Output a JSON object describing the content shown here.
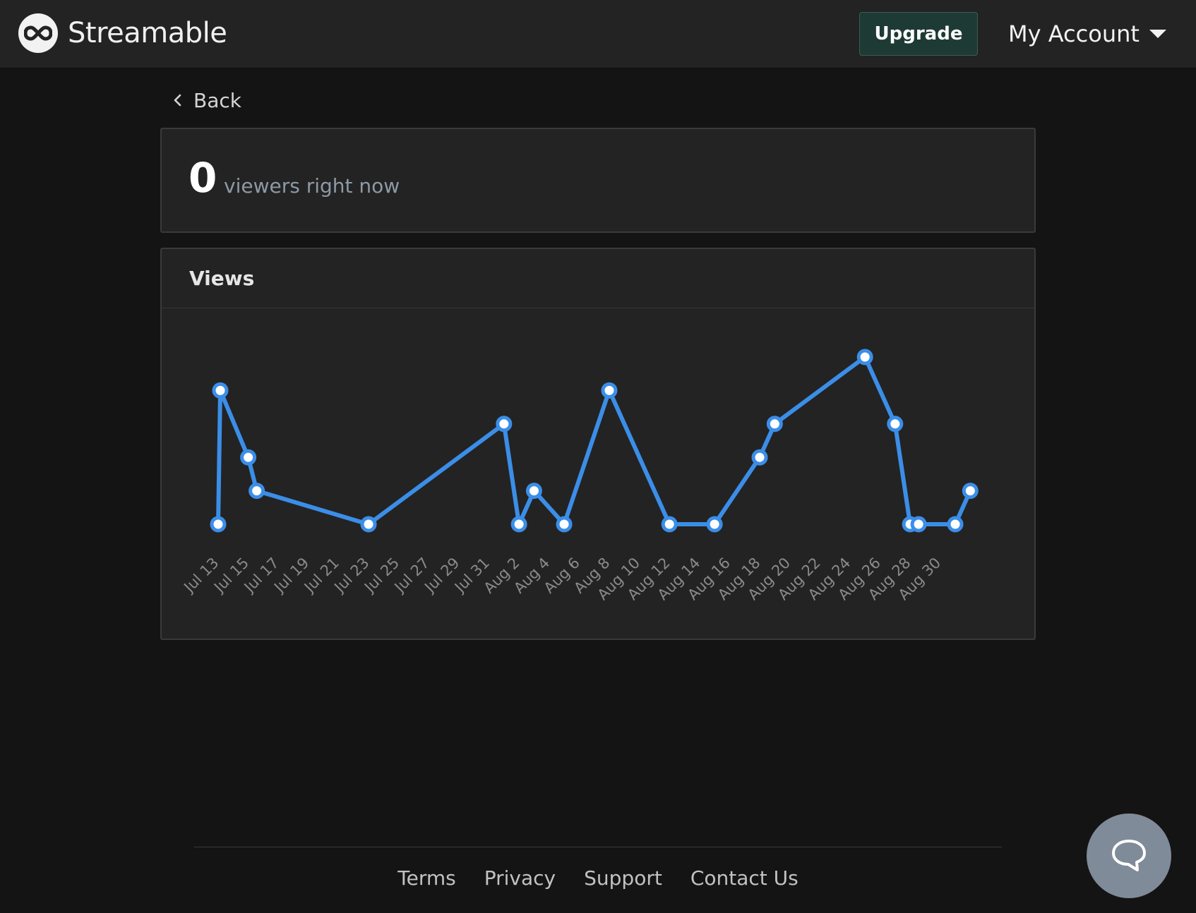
{
  "header": {
    "brand": "Streamable",
    "upgrade_label": "Upgrade",
    "account_label": "My Account",
    "icons": {
      "logo": "infinity-logo-icon",
      "account_caret": "caret-down-icon"
    }
  },
  "nav": {
    "back_label": "Back",
    "back_icon": "chevron-left-icon"
  },
  "live": {
    "viewers_count": "0",
    "viewers_label": "viewers right now"
  },
  "views_card": {
    "title": "Views"
  },
  "chart_data": {
    "type": "line",
    "title": "",
    "xlabel": "",
    "ylabel": "",
    "grid": false,
    "legend": "none",
    "color": "#3b8ee8",
    "x_domain": [
      "2023-07-13",
      "2023-08-31"
    ],
    "y_range": [
      0,
      5
    ],
    "x_ticks": [
      "Jul 13",
      "Jul 15",
      "Jul 17",
      "Jul 19",
      "Jul 21",
      "Jul 23",
      "Jul 25",
      "Jul 27",
      "Jul 29",
      "Jul 31",
      "Aug 2",
      "Aug 4",
      "Aug 6",
      "Aug 8",
      "Aug 10",
      "Aug 12",
      "Aug 14",
      "Aug 16",
      "Aug 18",
      "Aug 20",
      "Aug 22",
      "Aug 24",
      "Aug 26",
      "Aug 28",
      "Aug 30"
    ],
    "points": [
      {
        "x": "2023-07-13",
        "y": 0
      },
      {
        "x": "2023-07-13",
        "y": 4
      },
      {
        "x": "2023-07-15",
        "y": 2
      },
      {
        "x": "2023-07-15",
        "y": 1
      },
      {
        "x": "2023-07-23",
        "y": 0
      },
      {
        "x": "2023-08-01",
        "y": 3
      },
      {
        "x": "2023-08-02",
        "y": 0
      },
      {
        "x": "2023-08-03",
        "y": 1
      },
      {
        "x": "2023-08-05",
        "y": 0
      },
      {
        "x": "2023-08-08",
        "y": 4
      },
      {
        "x": "2023-08-12",
        "y": 0
      },
      {
        "x": "2023-08-15",
        "y": 0
      },
      {
        "x": "2023-08-18",
        "y": 2
      },
      {
        "x": "2023-08-19",
        "y": 3
      },
      {
        "x": "2023-08-25",
        "y": 5
      },
      {
        "x": "2023-08-27",
        "y": 3
      },
      {
        "x": "2023-08-28",
        "y": 0
      },
      {
        "x": "2023-08-28",
        "y": 0
      },
      {
        "x": "2023-08-31",
        "y": 0
      },
      {
        "x": "2023-09-01",
        "y": 1
      }
    ]
  },
  "footer": {
    "links": [
      "Terms",
      "Privacy",
      "Support",
      "Contact Us"
    ]
  },
  "chat": {
    "icon": "chat-bubble-icon"
  }
}
